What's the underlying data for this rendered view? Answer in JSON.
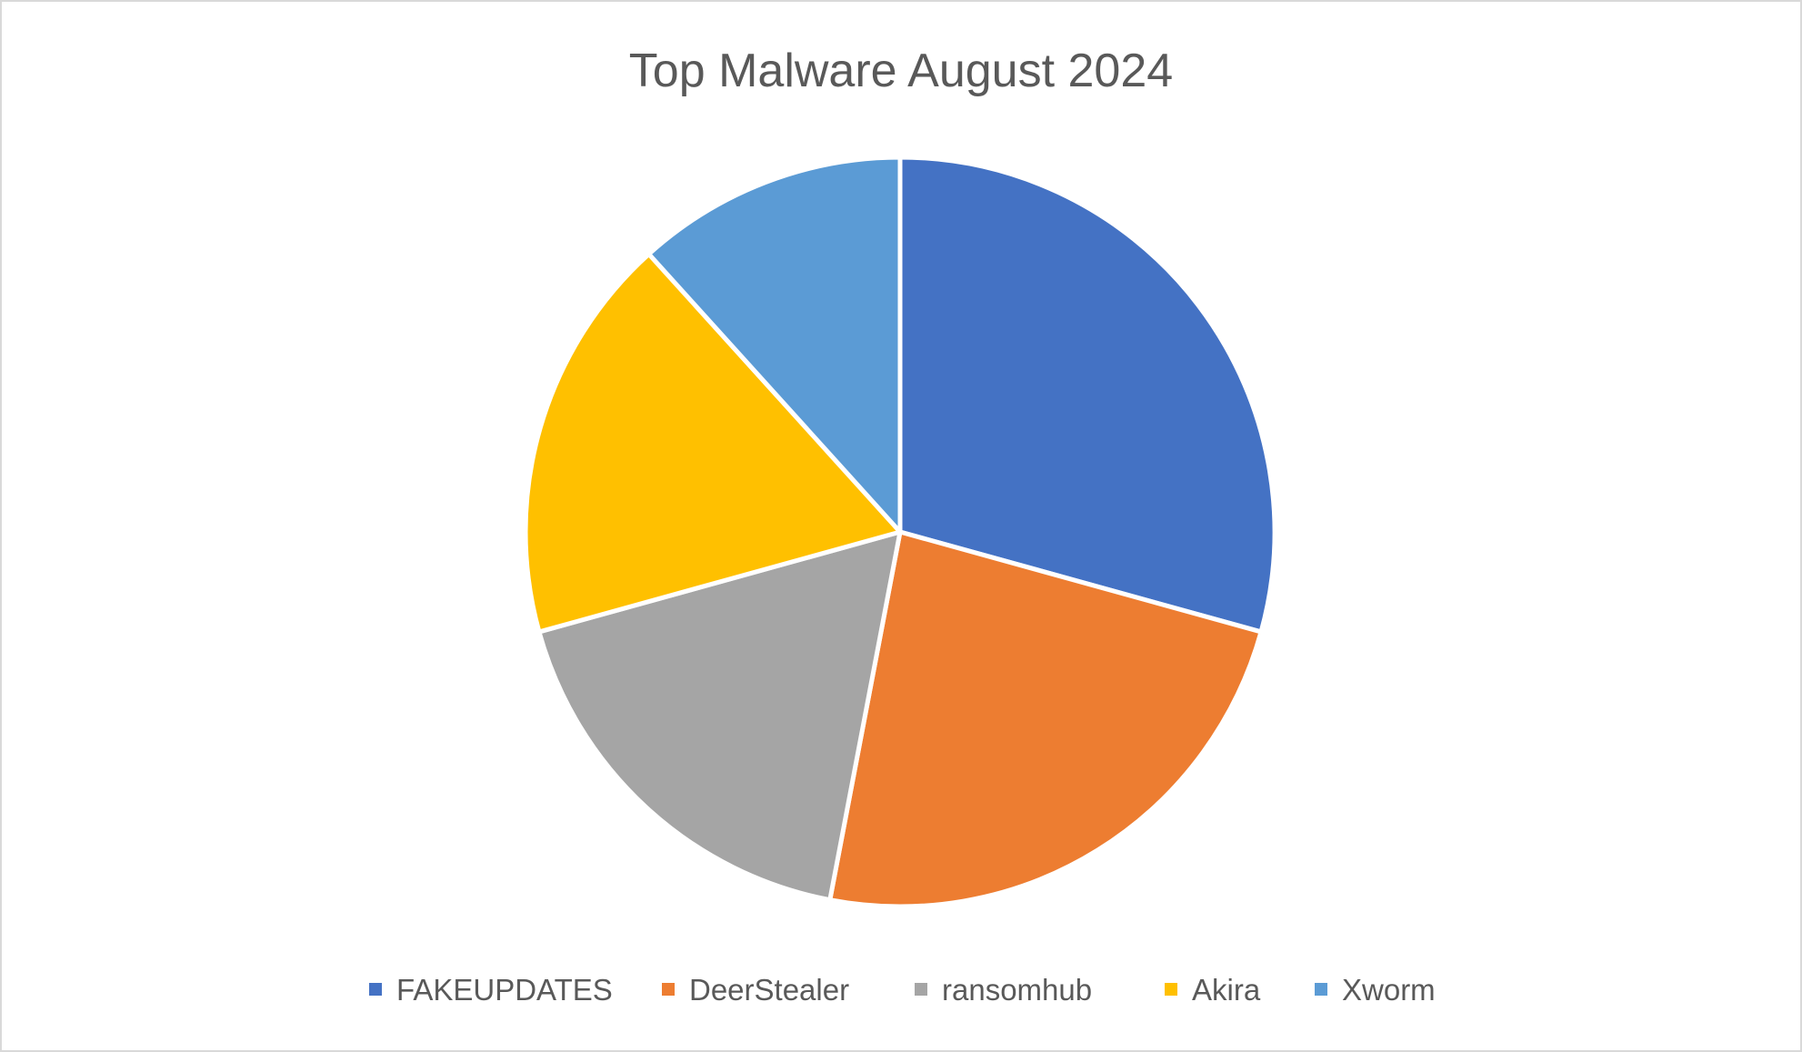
{
  "chart_data": {
    "type": "pie",
    "title": "Top Malware August 2024",
    "categories": [
      "FAKEUPDATES",
      "DeerStealer",
      "ransomhub",
      "Akira",
      "Xworm"
    ],
    "values": [
      29.3,
      23.7,
      17.7,
      17.6,
      11.7
    ],
    "colors": [
      "#4472C4",
      "#ED7D31",
      "#A5A5A5",
      "#FFC000",
      "#5B9BD5"
    ],
    "start_angle_deg": 0,
    "direction": "clockwise",
    "legend_position": "bottom",
    "data_labels": false
  }
}
